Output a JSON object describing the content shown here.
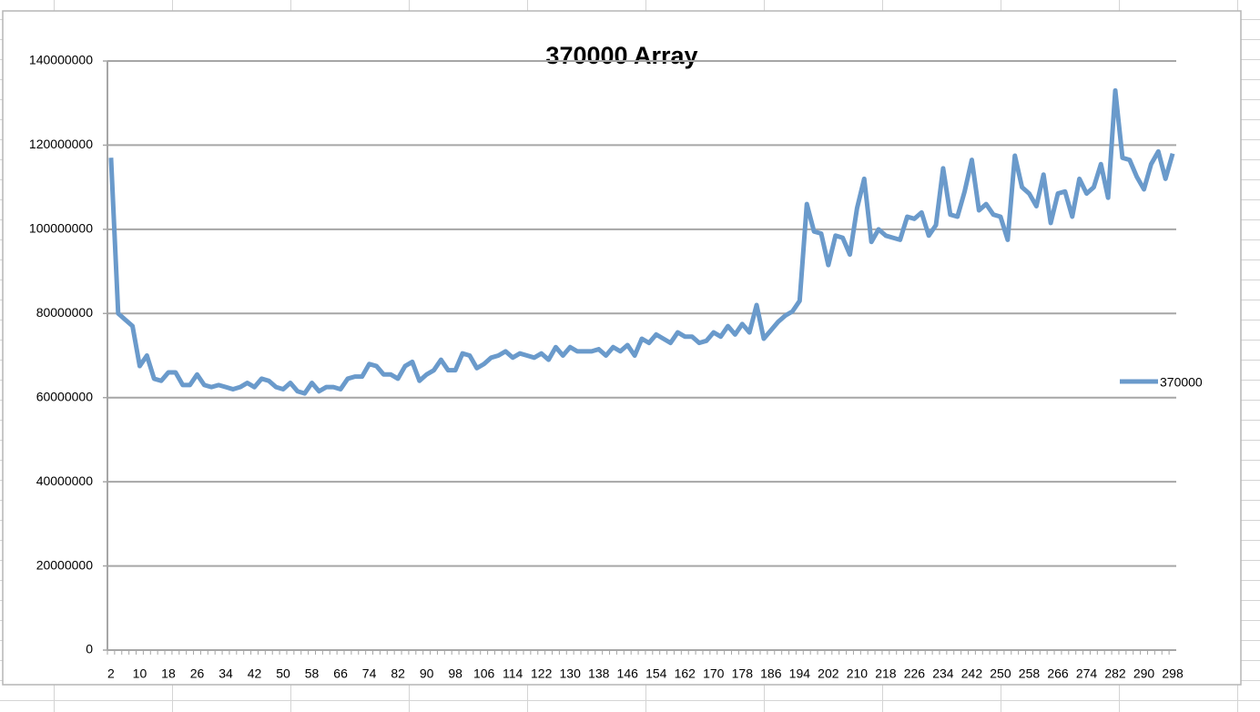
{
  "chart_data": {
    "type": "line",
    "title": "370000 Array",
    "categories": [
      "2",
      null,
      null,
      null,
      "10",
      null,
      null,
      null,
      "18",
      null,
      null,
      null,
      "26",
      null,
      null,
      null,
      "34",
      null,
      null,
      null,
      "42",
      null,
      null,
      null,
      "50",
      null,
      null,
      null,
      "58",
      null,
      null,
      null,
      "66",
      null,
      null,
      null,
      "74",
      null,
      null,
      null,
      "82",
      null,
      null,
      null,
      "90",
      null,
      null,
      null,
      "98",
      null,
      null,
      null,
      "106",
      null,
      null,
      null,
      "114",
      null,
      null,
      null,
      "122",
      null,
      null,
      null,
      "130",
      null,
      null,
      null,
      "138",
      null,
      null,
      null,
      "146",
      null,
      null,
      null,
      "154",
      null,
      null,
      null,
      "162",
      null,
      null,
      null,
      "170",
      null,
      null,
      null,
      "178",
      null,
      null,
      null,
      "186",
      null,
      null,
      null,
      "194",
      null,
      null,
      null,
      "202",
      null,
      null,
      null,
      "210",
      null,
      null,
      null,
      "218",
      null,
      null,
      null,
      "226",
      null,
      null,
      null,
      "234",
      null,
      null,
      null,
      "242",
      null,
      null,
      null,
      "250",
      null,
      null,
      null,
      "258",
      null,
      null,
      null,
      "266",
      null,
      null,
      null,
      "274",
      null,
      null,
      null,
      "282",
      null,
      null,
      null,
      "290",
      null,
      null,
      null,
      "298"
    ],
    "series": [
      {
        "name": "370000",
        "color": "#6a9acb",
        "values": [
          117000000,
          80000000,
          78500000,
          77000000,
          67500000,
          70000000,
          64500000,
          64000000,
          66000000,
          66000000,
          63000000,
          63000000,
          65500000,
          63000000,
          62500000,
          63000000,
          62500000,
          62000000,
          62500000,
          63500000,
          62500000,
          64500000,
          64000000,
          62500000,
          62000000,
          63500000,
          61500000,
          61000000,
          63500000,
          61500000,
          62500000,
          62500000,
          62000000,
          64500000,
          65000000,
          65000000,
          68000000,
          67500000,
          65500000,
          65500000,
          64500000,
          67500000,
          68500000,
          64000000,
          65500000,
          66500000,
          69000000,
          66500000,
          66500000,
          70500000,
          70000000,
          67000000,
          68000000,
          69500000,
          70000000,
          71000000,
          69500000,
          70500000,
          70000000,
          69500000,
          70500000,
          69000000,
          72000000,
          70000000,
          72000000,
          71000000,
          71000000,
          71000000,
          71500000,
          70000000,
          72000000,
          71000000,
          72500000,
          70000000,
          74000000,
          73000000,
          75000000,
          74000000,
          73000000,
          75500000,
          74500000,
          74500000,
          73000000,
          73500000,
          75500000,
          74500000,
          77000000,
          75000000,
          77500000,
          75500000,
          82000000,
          74000000,
          76000000,
          78000000,
          79500000,
          80500000,
          83000000,
          106000000,
          99500000,
          99000000,
          91500000,
          98500000,
          98000000,
          94000000,
          105000000,
          112000000,
          97000000,
          100000000,
          98500000,
          98000000,
          97500000,
          103000000,
          102500000,
          104000000,
          98500000,
          101000000,
          114500000,
          103500000,
          103000000,
          109000000,
          116500000,
          104500000,
          106000000,
          103500000,
          103000000,
          97500000,
          117500000,
          110000000,
          108500000,
          105500000,
          113000000,
          101500000,
          108500000,
          109000000,
          103000000,
          112000000,
          108500000,
          110000000,
          115500000,
          107500000,
          133000000,
          117000000,
          116500000,
          112500000,
          109500000,
          115500000,
          118500000,
          112000000,
          118000000
        ]
      }
    ],
    "ylim": [
      0,
      140000000
    ],
    "yticks": [
      0,
      20000000,
      40000000,
      60000000,
      80000000,
      100000000,
      120000000,
      140000000
    ],
    "grid": true,
    "legend": "right"
  }
}
